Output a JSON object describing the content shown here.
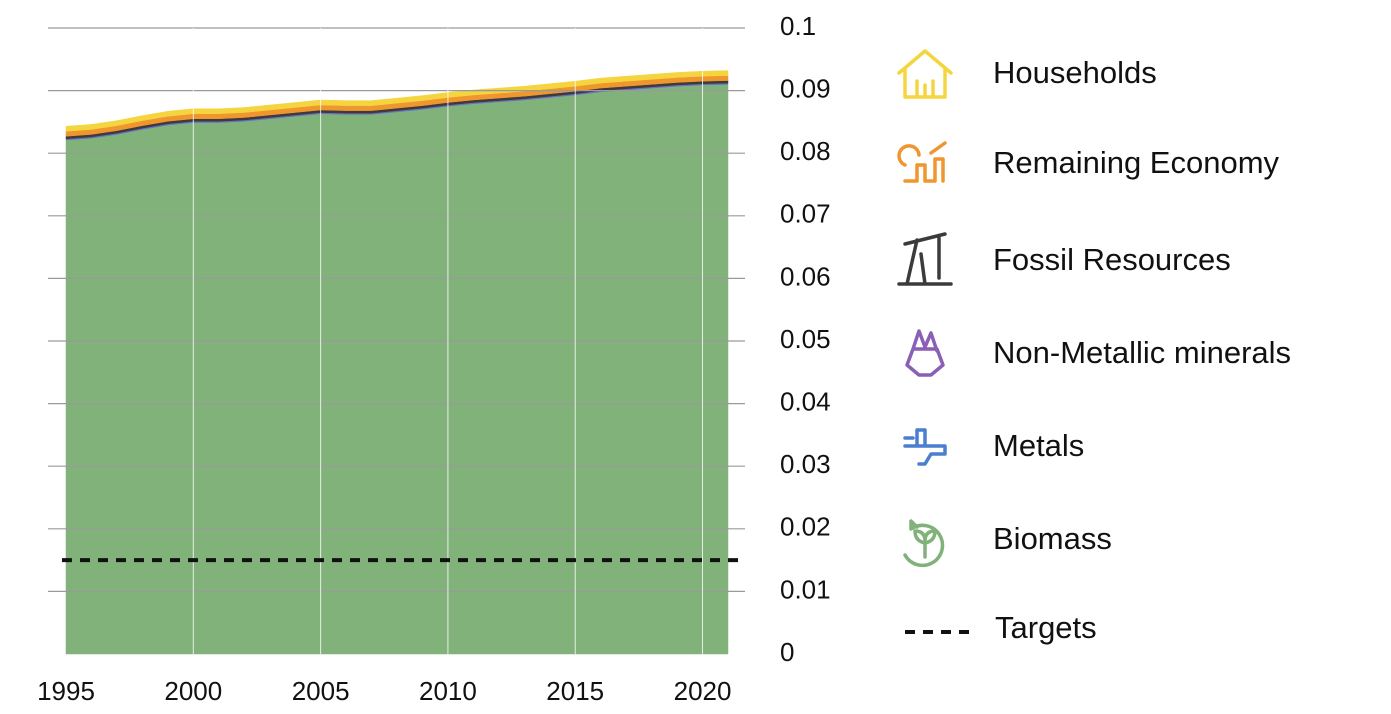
{
  "chart_data": {
    "type": "stacked_area",
    "x": [
      1995,
      1996,
      1997,
      1998,
      1999,
      2000,
      2001,
      2002,
      2003,
      2004,
      2005,
      2006,
      2007,
      2008,
      2009,
      2010,
      2011,
      2012,
      2013,
      2014,
      2015,
      2016,
      2017,
      2018,
      2019,
      2020,
      2021
    ],
    "series": [
      {
        "name": "Biomass",
        "color": "#80b27a",
        "values": [
          0.0821,
          0.0824,
          0.083,
          0.0838,
          0.0845,
          0.0849,
          0.0849,
          0.0851,
          0.0855,
          0.0859,
          0.0863,
          0.0862,
          0.0862,
          0.0866,
          0.087,
          0.0875,
          0.0879,
          0.0882,
          0.0885,
          0.0889,
          0.0893,
          0.0898,
          0.0901,
          0.0904,
          0.0907,
          0.0909,
          0.091
        ]
      },
      {
        "name": "Metals",
        "color": "#4a7fd0",
        "values": [
          0.0001,
          0.0001,
          0.0001,
          0.0001,
          0.0001,
          0.0001,
          0.0001,
          0.0001,
          0.0001,
          0.0001,
          0.0001,
          0.0001,
          0.0001,
          0.0001,
          0.0001,
          0.0001,
          0.0001,
          0.0001,
          0.0001,
          0.0001,
          0.0001,
          0.0001,
          0.0001,
          0.0001,
          0.0001,
          0.0001,
          0.0001
        ]
      },
      {
        "name": "Non-Metallic minerals",
        "color": "#8a5fb5",
        "values": [
          0.0001,
          0.0001,
          0.0001,
          0.0001,
          0.0001,
          0.0001,
          0.0001,
          0.0001,
          0.0001,
          0.0001,
          0.0001,
          0.0001,
          0.0001,
          0.0001,
          0.0001,
          0.0001,
          0.0001,
          0.0001,
          0.0001,
          0.0001,
          0.0001,
          0.0001,
          0.0001,
          0.0001,
          0.0001,
          0.0001,
          0.0001
        ]
      },
      {
        "name": "Fossil Resources",
        "color": "#3b3b3b",
        "values": [
          0.0004,
          0.0004,
          0.0004,
          0.0004,
          0.0004,
          0.0004,
          0.0004,
          0.0004,
          0.0004,
          0.0004,
          0.0004,
          0.0004,
          0.0004,
          0.0004,
          0.0004,
          0.0004,
          0.0004,
          0.0004,
          0.0004,
          0.0004,
          0.0004,
          0.0004,
          0.0004,
          0.0004,
          0.0004,
          0.0004,
          0.0004
        ]
      },
      {
        "name": "Remaining Economy",
        "color": "#f0962e",
        "values": [
          0.0008,
          0.0008,
          0.0008,
          0.0008,
          0.0008,
          0.0008,
          0.0008,
          0.0008,
          0.0008,
          0.0008,
          0.0008,
          0.0008,
          0.0008,
          0.0008,
          0.0008,
          0.0008,
          0.0008,
          0.0008,
          0.0008,
          0.0008,
          0.0008,
          0.0008,
          0.0008,
          0.0008,
          0.0008,
          0.0008,
          0.0008
        ]
      },
      {
        "name": "Households",
        "color": "#f5d53f",
        "values": [
          0.0008,
          0.0008,
          0.0008,
          0.0008,
          0.0008,
          0.0008,
          0.0008,
          0.0008,
          0.0008,
          0.0008,
          0.0008,
          0.0008,
          0.0008,
          0.0008,
          0.0008,
          0.0008,
          0.0008,
          0.0008,
          0.0008,
          0.0008,
          0.0008,
          0.0008,
          0.0008,
          0.0008,
          0.0008,
          0.0008,
          0.0008
        ]
      }
    ],
    "target": {
      "name": "Targets",
      "value": 0.015,
      "color": "#111111"
    },
    "xlim": [
      1995,
      2021
    ],
    "xticks": [
      1995,
      2000,
      2005,
      2010,
      2015,
      2020
    ],
    "ylim": [
      0,
      0.1
    ],
    "yticks": [
      0,
      0.01,
      0.02,
      0.03,
      0.04,
      0.05,
      0.06,
      0.07,
      0.08,
      0.09,
      0.1
    ],
    "grid": true,
    "legend": "right"
  }
}
